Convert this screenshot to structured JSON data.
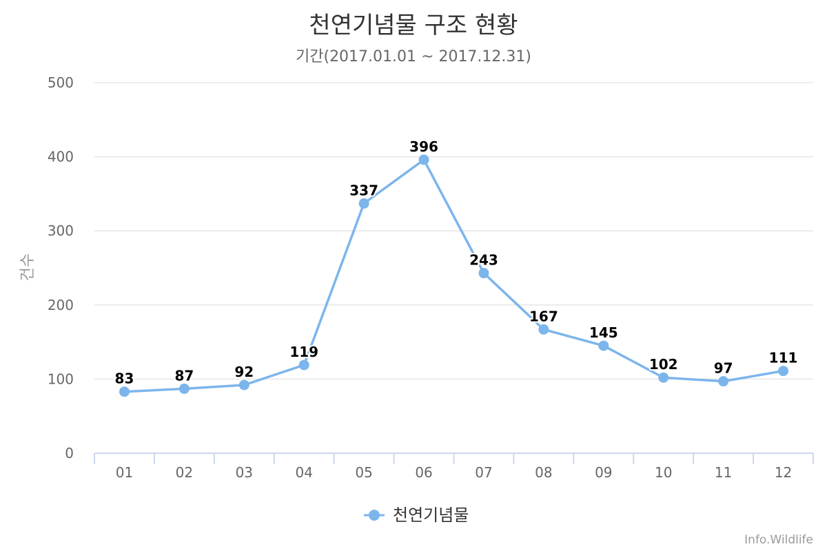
{
  "chart_data": {
    "type": "line",
    "title": "천연기념물 구조 현황",
    "subtitle": "기간(2017.01.01 ~ 2017.12.31)",
    "xlabel": "",
    "ylabel": "건수",
    "categories": [
      "01",
      "02",
      "03",
      "04",
      "05",
      "06",
      "07",
      "08",
      "09",
      "10",
      "11",
      "12"
    ],
    "series": [
      {
        "name": "천연기념물",
        "values": [
          83,
          87,
          92,
          119,
          337,
          396,
          243,
          167,
          145,
          102,
          97,
          111
        ]
      }
    ],
    "ylim": [
      0,
      500
    ],
    "yticks": [
      "0",
      "100",
      "200",
      "300",
      "400",
      "500"
    ],
    "grid": true,
    "legend_position": "bottom",
    "color": "#7cb5ec",
    "data_labels": true
  },
  "credit": "Info.Wildlife"
}
